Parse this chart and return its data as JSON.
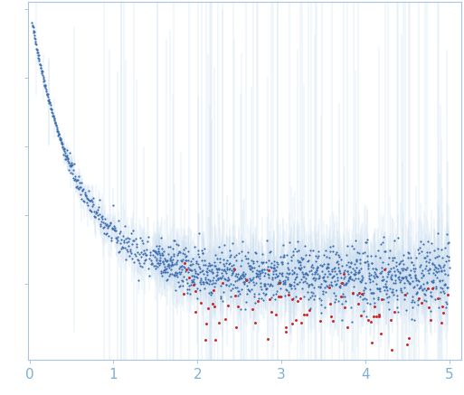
{
  "background_color": "#ffffff",
  "axis_color": "#a8c4e0",
  "tick_color": "#a8c4e0",
  "tick_label_color": "#7ab0d4",
  "dot_color_main": "#3d6db0",
  "dot_color_outlier": "#cc2222",
  "error_color": "#c5d9ee",
  "dot_size_main": 2.5,
  "dot_size_outlier": 4.5,
  "n_points": 1500,
  "n_outliers": 90,
  "seed": 42,
  "xticks": [
    0,
    1,
    2,
    3,
    4,
    5
  ]
}
